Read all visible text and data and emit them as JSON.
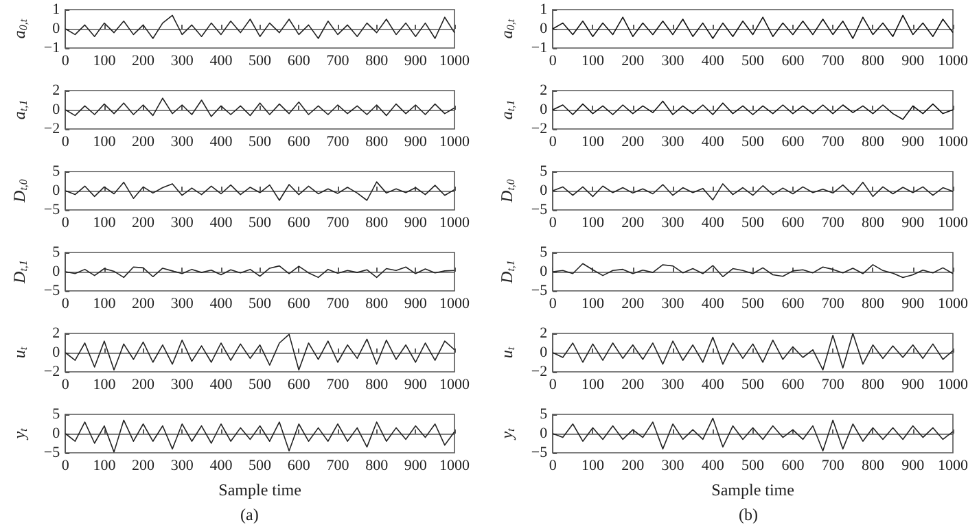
{
  "chart_data": [
    {
      "type": "line",
      "ylabel": "a$_{0,t}$",
      "x": [
        0,
        25,
        50,
        75,
        100,
        125,
        150,
        175,
        200,
        225,
        250,
        275,
        300,
        325,
        350,
        375,
        400,
        425,
        450,
        475,
        500,
        525,
        550,
        575,
        600,
        625,
        650,
        675,
        700,
        725,
        750,
        775,
        800,
        825,
        850,
        875,
        900,
        925,
        950,
        975,
        1000
      ],
      "xlim": [
        0,
        1000
      ],
      "xticks": [
        0,
        100,
        200,
        300,
        400,
        500,
        600,
        700,
        800,
        900,
        1000
      ],
      "ylim": [
        -1,
        1
      ],
      "yticks": [
        -1,
        0,
        1
      ],
      "series": [
        {
          "color": "#222222",
          "values": [
            0,
            -0.3,
            0.2,
            -0.4,
            0.3,
            -0.2,
            0.4,
            -0.3,
            0.2,
            -0.5,
            0.3,
            0.7,
            -0.3,
            0.2,
            -0.4,
            0.3,
            -0.3,
            0.4,
            -0.2,
            0.5,
            -0.4,
            0.3,
            -0.2,
            0.5,
            -0.3,
            0.2,
            -0.5,
            0.4,
            -0.3,
            0.2,
            -0.4,
            0.3,
            -0.2,
            0.5,
            -0.3,
            0.3,
            -0.4,
            0.3,
            -0.5,
            0.6,
            -0.2
          ]
        }
      ]
    },
    {
      "type": "line",
      "ylabel": "a$_{t,1}$",
      "x": [
        0,
        25,
        50,
        75,
        100,
        125,
        150,
        175,
        200,
        225,
        250,
        275,
        300,
        325,
        350,
        375,
        400,
        425,
        450,
        475,
        500,
        525,
        550,
        575,
        600,
        625,
        650,
        675,
        700,
        725,
        750,
        775,
        800,
        825,
        850,
        875,
        900,
        925,
        950,
        975,
        1000
      ],
      "xlim": [
        0,
        1000
      ],
      "xticks": [
        0,
        100,
        200,
        300,
        400,
        500,
        600,
        700,
        800,
        900,
        1000
      ],
      "ylim": [
        -2,
        2
      ],
      "yticks": [
        -2,
        0,
        2
      ],
      "series": [
        {
          "color": "#222222",
          "values": [
            0,
            -0.6,
            0.4,
            -0.5,
            0.6,
            -0.4,
            0.7,
            -0.5,
            0.5,
            -0.6,
            1.2,
            -0.4,
            0.5,
            -0.5,
            1.0,
            -0.7,
            0.4,
            -0.5,
            0.4,
            -0.6,
            0.7,
            -0.5,
            0.6,
            -0.4,
            0.8,
            -0.5,
            0.4,
            -0.5,
            0.5,
            -0.4,
            0.4,
            -0.5,
            0.5,
            -0.6,
            0.6,
            -0.4,
            0.5,
            -0.5,
            0.6,
            -0.4,
            0.2
          ]
        }
      ]
    },
    {
      "type": "line",
      "ylabel": "D$_{t,0}$",
      "x": [
        0,
        25,
        50,
        75,
        100,
        125,
        150,
        175,
        200,
        225,
        250,
        275,
        300,
        325,
        350,
        375,
        400,
        425,
        450,
        475,
        500,
        525,
        550,
        575,
        600,
        625,
        650,
        675,
        700,
        725,
        750,
        775,
        800,
        825,
        850,
        875,
        900,
        925,
        950,
        975,
        1000
      ],
      "xlim": [
        0,
        1000
      ],
      "xticks": [
        0,
        100,
        200,
        300,
        400,
        500,
        600,
        700,
        800,
        900,
        1000
      ],
      "ylim": [
        -5,
        5
      ],
      "yticks": [
        -5,
        0,
        5
      ],
      "series": [
        {
          "color": "#222222",
          "values": [
            0,
            -1,
            1.2,
            -1.5,
            1,
            -0.8,
            2.2,
            -2,
            1,
            -0.6,
            0.8,
            1.8,
            -1.2,
            0.7,
            -1,
            1.2,
            -0.8,
            1.5,
            -1,
            0.9,
            -0.5,
            1.5,
            -2.5,
            1.6,
            -1,
            1.2,
            -0.8,
            0.5,
            -0.7,
            0.9,
            -0.6,
            -2.5,
            2.3,
            -0.6,
            0.5,
            -0.5,
            0.8,
            -1,
            1.4,
            -1.2,
            0.3
          ]
        }
      ]
    },
    {
      "type": "line",
      "ylabel": "D$_{t,1}$",
      "x": [
        0,
        25,
        50,
        75,
        100,
        125,
        150,
        175,
        200,
        225,
        250,
        275,
        300,
        325,
        350,
        375,
        400,
        425,
        450,
        475,
        500,
        525,
        550,
        575,
        600,
        625,
        650,
        675,
        700,
        725,
        750,
        775,
        800,
        825,
        850,
        875,
        900,
        925,
        950,
        975,
        1000
      ],
      "xlim": [
        0,
        1000
      ],
      "xticks": [
        0,
        100,
        200,
        300,
        400,
        500,
        600,
        700,
        800,
        900,
        1000
      ],
      "ylim": [
        -5,
        5
      ],
      "yticks": [
        -5,
        0,
        5
      ],
      "series": [
        {
          "color": "#222222",
          "values": [
            0,
            -0.5,
            0.6,
            -1,
            0.8,
            0.1,
            -1.5,
            1.2,
            1,
            -1.3,
            0.9,
            0.2,
            -0.5,
            0.6,
            -0.2,
            0.4,
            -0.8,
            0.5,
            -0.3,
            0.6,
            -1.2,
            0.9,
            1.5,
            -0.5,
            1.4,
            -0.3,
            -1.5,
            0.6,
            -0.4,
            0.3,
            -0.2,
            0.5,
            -1.5,
            0.8,
            0.3,
            1.2,
            -0.5,
            0.7,
            -0.3,
            0.2,
            0.3
          ]
        }
      ]
    },
    {
      "type": "line",
      "ylabel": "u$_{t}$",
      "x": [
        0,
        25,
        50,
        75,
        100,
        125,
        150,
        175,
        200,
        225,
        250,
        275,
        300,
        325,
        350,
        375,
        400,
        425,
        450,
        475,
        500,
        525,
        550,
        575,
        600,
        625,
        650,
        675,
        700,
        725,
        750,
        775,
        800,
        825,
        850,
        875,
        900,
        925,
        950,
        975,
        1000
      ],
      "xlim": [
        0,
        1000
      ],
      "xticks": [
        0,
        100,
        200,
        300,
        400,
        500,
        600,
        700,
        800,
        900,
        1000
      ],
      "ylim": [
        -2,
        2
      ],
      "yticks": [
        -2,
        0,
        2
      ],
      "series": [
        {
          "color": "#222222",
          "values": [
            0,
            -0.8,
            1,
            -1.5,
            1.2,
            -1.8,
            0.9,
            -0.7,
            1.1,
            -1,
            0.8,
            -1.2,
            1.3,
            -0.9,
            0.7,
            -1,
            1,
            -0.8,
            0.9,
            -0.6,
            0.8,
            -1.3,
            1,
            1.9,
            -1.8,
            1,
            -0.7,
            1.2,
            -1,
            0.8,
            -0.6,
            1.4,
            -1.2,
            1.3,
            -0.7,
            0.8,
            -1,
            1,
            -0.8,
            1.2,
            0.3
          ]
        }
      ]
    },
    {
      "type": "line",
      "ylabel": "y$_{t}$",
      "xlabel": "Sample time",
      "annotations": [
        "(a)"
      ],
      "x": [
        0,
        25,
        50,
        75,
        100,
        125,
        150,
        175,
        200,
        225,
        250,
        275,
        300,
        325,
        350,
        375,
        400,
        425,
        450,
        475,
        500,
        525,
        550,
        575,
        600,
        625,
        650,
        675,
        700,
        725,
        750,
        775,
        800,
        825,
        850,
        875,
        900,
        925,
        950,
        975,
        1000
      ],
      "xlim": [
        0,
        1000
      ],
      "xticks": [
        0,
        100,
        200,
        300,
        400,
        500,
        600,
        700,
        800,
        900,
        1000
      ],
      "ylim": [
        -5,
        5
      ],
      "yticks": [
        -5,
        0,
        5
      ],
      "series": [
        {
          "color": "#222222",
          "values": [
            0,
            -2,
            3,
            -2.5,
            2,
            -4.8,
            3.5,
            -2,
            2.5,
            -2,
            2,
            -4,
            2.5,
            -2,
            2,
            -2.5,
            2.5,
            -2,
            1.5,
            -1.5,
            2,
            -2,
            3,
            -4.5,
            2.5,
            -2,
            1.5,
            -2,
            2.5,
            -2,
            1.5,
            -3.5,
            3,
            -2,
            1.5,
            -1.5,
            2,
            -1,
            2.5,
            -3,
            0.5
          ]
        }
      ]
    },
    {
      "type": "line",
      "ylabel": "a$_{0,t}$",
      "x": [
        0,
        25,
        50,
        75,
        100,
        125,
        150,
        175,
        200,
        225,
        250,
        275,
        300,
        325,
        350,
        375,
        400,
        425,
        450,
        475,
        500,
        525,
        550,
        575,
        600,
        625,
        650,
        675,
        700,
        725,
        750,
        775,
        800,
        825,
        850,
        875,
        900,
        925,
        950,
        975,
        1000
      ],
      "xlim": [
        0,
        1000
      ],
      "xticks": [
        0,
        100,
        200,
        300,
        400,
        500,
        600,
        700,
        800,
        900,
        1000
      ],
      "ylim": [
        -1,
        1
      ],
      "yticks": [
        -1,
        0,
        1
      ],
      "series": [
        {
          "color": "#111111",
          "values": [
            0,
            0.3,
            -0.3,
            0.4,
            -0.4,
            0.3,
            -0.3,
            0.6,
            -0.4,
            0.3,
            -0.3,
            0.4,
            -0.3,
            0.5,
            -0.4,
            0.3,
            -0.5,
            0.3,
            -0.4,
            0.4,
            -0.3,
            0.6,
            -0.4,
            0.3,
            -0.3,
            0.4,
            -0.3,
            0.5,
            -0.3,
            0.4,
            -0.5,
            0.6,
            -0.3,
            0.3,
            -0.4,
            0.7,
            -0.3,
            0.3,
            -0.4,
            0.5,
            -0.2
          ]
        }
      ]
    },
    {
      "type": "line",
      "ylabel": "a$_{t,1}$",
      "x": [
        0,
        25,
        50,
        75,
        100,
        125,
        150,
        175,
        200,
        225,
        250,
        275,
        300,
        325,
        350,
        375,
        400,
        425,
        450,
        475,
        500,
        525,
        550,
        575,
        600,
        625,
        650,
        675,
        700,
        725,
        750,
        775,
        800,
        825,
        850,
        875,
        900,
        925,
        950,
        975,
        1000
      ],
      "xlim": [
        0,
        1000
      ],
      "xticks": [
        0,
        100,
        200,
        300,
        400,
        500,
        600,
        700,
        800,
        900,
        1000
      ],
      "ylim": [
        -2,
        2
      ],
      "yticks": [
        -2,
        0,
        2
      ],
      "series": [
        {
          "color": "#111111",
          "values": [
            0,
            0.5,
            -0.5,
            0.6,
            -0.4,
            0.4,
            -0.5,
            0.5,
            -0.4,
            0.4,
            -0.3,
            0.9,
            -0.5,
            0.4,
            -0.4,
            0.5,
            -0.5,
            0.7,
            -0.4,
            0.4,
            -0.5,
            0.4,
            -0.4,
            0.5,
            -0.4,
            0.4,
            -0.4,
            0.5,
            -0.4,
            0.5,
            -0.3,
            0.4,
            -0.4,
            0.5,
            -0.4,
            -1,
            0.4,
            -0.4,
            0.6,
            -0.4,
            0
          ]
        }
      ]
    },
    {
      "type": "line",
      "ylabel": "D$_{t,0}$",
      "x": [
        0,
        25,
        50,
        75,
        100,
        125,
        150,
        175,
        200,
        225,
        250,
        275,
        300,
        325,
        350,
        375,
        400,
        425,
        450,
        475,
        500,
        525,
        550,
        575,
        600,
        625,
        650,
        675,
        700,
        725,
        750,
        775,
        800,
        825,
        850,
        875,
        900,
        925,
        950,
        975,
        1000
      ],
      "xlim": [
        0,
        1000
      ],
      "xticks": [
        0,
        100,
        200,
        300,
        400,
        500,
        600,
        700,
        800,
        900,
        1000
      ],
      "ylim": [
        -5,
        5
      ],
      "yticks": [
        -5,
        0,
        5
      ],
      "series": [
        {
          "color": "#222222",
          "values": [
            0,
            1,
            -1.2,
            1,
            -1.5,
            1.2,
            -0.5,
            0.8,
            -0.6,
            0.5,
            -0.8,
            1.6,
            -1.2,
            0.8,
            -0.5,
            0.6,
            -2.4,
            1.8,
            -1,
            0.8,
            -1.2,
            1.3,
            -1,
            0.7,
            -0.8,
            1,
            -0.5,
            0.4,
            -0.6,
            1.5,
            -1,
            2.2,
            -1.5,
            1,
            -0.8,
            0.9,
            -0.5,
            1,
            -1.2,
            0.8,
            -0.2
          ]
        }
      ]
    },
    {
      "type": "line",
      "ylabel": "D$_{t,1}$",
      "x": [
        0,
        25,
        50,
        75,
        100,
        125,
        150,
        175,
        200,
        225,
        250,
        275,
        300,
        325,
        350,
        375,
        400,
        425,
        450,
        475,
        500,
        525,
        550,
        575,
        600,
        625,
        650,
        675,
        700,
        725,
        750,
        775,
        800,
        825,
        850,
        875,
        900,
        925,
        950,
        975,
        1000
      ],
      "xlim": [
        0,
        1000
      ],
      "xticks": [
        0,
        100,
        200,
        300,
        400,
        500,
        600,
        700,
        800,
        900,
        1000
      ],
      "ylim": [
        -5,
        5
      ],
      "yticks": [
        -5,
        0,
        5
      ],
      "series": [
        {
          "color": "#222222",
          "values": [
            0,
            0.3,
            -0.5,
            2.1,
            0.5,
            -1,
            0.3,
            0.6,
            -0.5,
            0.4,
            -0.2,
            1.8,
            1.5,
            -0.3,
            0.8,
            -0.5,
            1.6,
            -1.3,
            0.8,
            0.3,
            -0.5,
            1,
            -0.8,
            -1.2,
            0.2,
            0.5,
            -0.3,
            1.2,
            0.6,
            -0.3,
            0.9,
            -0.5,
            1.8,
            0.3,
            -0.4,
            -1.5,
            -0.8,
            0.4,
            -0.3,
            1,
            -0.5
          ]
        }
      ]
    },
    {
      "type": "line",
      "ylabel": "u$_{t}$",
      "x": [
        0,
        25,
        50,
        75,
        100,
        125,
        150,
        175,
        200,
        225,
        250,
        275,
        300,
        325,
        350,
        375,
        400,
        425,
        450,
        475,
        500,
        525,
        550,
        575,
        600,
        625,
        650,
        675,
        700,
        725,
        750,
        775,
        800,
        825,
        850,
        875,
        900,
        925,
        950,
        975,
        1000
      ],
      "xlim": [
        0,
        1000
      ],
      "xticks": [
        0,
        100,
        200,
        300,
        400,
        500,
        600,
        700,
        800,
        900,
        1000
      ],
      "ylim": [
        -2,
        2
      ],
      "yticks": [
        -2,
        0,
        2
      ],
      "series": [
        {
          "color": "#222222",
          "values": [
            0,
            -0.5,
            1,
            -1,
            0.9,
            -0.8,
            1,
            -0.6,
            0.8,
            -0.7,
            1,
            -1.2,
            1.2,
            -0.8,
            0.8,
            -1,
            1.6,
            -1.2,
            1,
            -0.6,
            0.9,
            -1,
            1.3,
            -0.7,
            0.6,
            -0.5,
            0.3,
            -1.8,
            1.8,
            -1.6,
            2,
            -1.2,
            0.8,
            -0.6,
            0.7,
            -0.5,
            0.8,
            -0.6,
            0.9,
            -0.7,
            0.2
          ]
        }
      ]
    },
    {
      "type": "line",
      "ylabel": "y$_{t}$",
      "xlabel": "Sample time",
      "annotations": [
        "(b)"
      ],
      "x": [
        0,
        25,
        50,
        75,
        100,
        125,
        150,
        175,
        200,
        225,
        250,
        275,
        300,
        325,
        350,
        375,
        400,
        425,
        450,
        475,
        500,
        525,
        550,
        575,
        600,
        625,
        650,
        675,
        700,
        725,
        750,
        775,
        800,
        825,
        850,
        875,
        900,
        925,
        950,
        975,
        1000
      ],
      "xlim": [
        0,
        1000
      ],
      "xticks": [
        0,
        100,
        200,
        300,
        400,
        500,
        600,
        700,
        800,
        900,
        1000
      ],
      "ylim": [
        -5,
        5
      ],
      "yticks": [
        -5,
        0,
        5
      ],
      "series": [
        {
          "color": "#222222",
          "values": [
            0,
            -1,
            2.5,
            -2,
            1.5,
            -1.5,
            2,
            -1.5,
            1,
            -1,
            3,
            -4,
            2.5,
            -1.5,
            1,
            -1.5,
            4,
            -3.5,
            2,
            -1.5,
            1.5,
            -1.5,
            2,
            -1,
            1,
            -1.5,
            2,
            -4.5,
            3.5,
            -4,
            2.5,
            -2,
            1.5,
            -1.5,
            1.5,
            -1.5,
            2,
            -1,
            1.5,
            -1.5,
            0.5
          ]
        }
      ]
    }
  ]
}
